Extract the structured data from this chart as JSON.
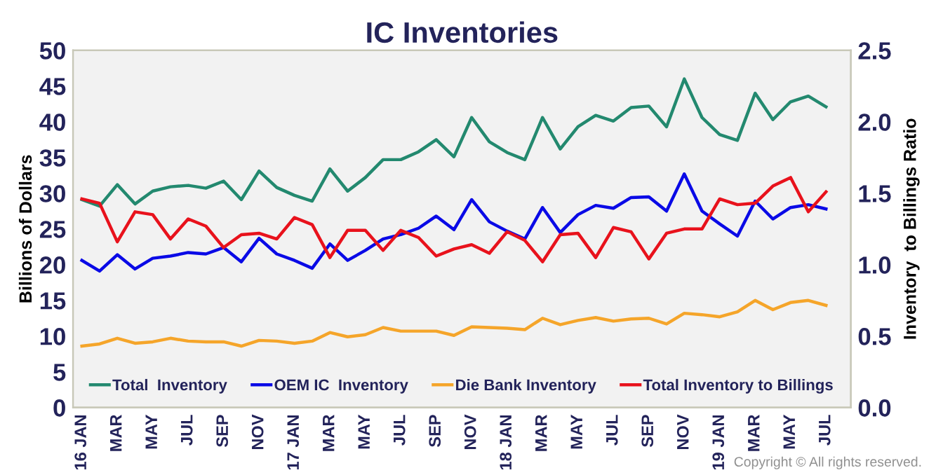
{
  "chart_data": {
    "type": "line",
    "title": "IC Inventories",
    "ylabel": "Billions of Dollars",
    "y2label": "Inventory  to Billings Ratio",
    "categories": [
      "16 JAN",
      null,
      "MAR",
      null,
      "MAY",
      null,
      "JUL",
      null,
      "SEP",
      null,
      "NOV",
      null,
      "17 JAN",
      null,
      "MAR",
      null,
      "MAY",
      null,
      "JUL",
      null,
      "SEP",
      null,
      "NOV",
      null,
      "18 JAN",
      null,
      "MAR",
      null,
      "MAY",
      null,
      "JUL",
      null,
      "SEP",
      null,
      "NOV",
      null,
      "19 JAN",
      null,
      "MAR",
      null,
      "MAY",
      null,
      "JUL"
    ],
    "series": [
      {
        "name": "Total  Inventory",
        "color": "#23896f",
        "values": [
          29.1,
          28.2,
          31.2,
          28.5,
          30.3,
          30.9,
          31.1,
          30.7,
          31.7,
          29.1,
          33.1,
          30.8,
          29.7,
          28.9,
          33.4,
          30.3,
          32.2,
          34.7,
          34.7,
          35.8,
          37.5,
          35.1,
          40.6,
          37.2,
          35.7,
          34.7,
          40.6,
          36.2,
          39.3,
          40.9,
          40.1,
          42.0,
          42.2,
          39.3,
          46.0,
          40.6,
          38.2,
          37.4,
          44.0,
          40.3,
          42.8,
          43.6,
          42.1
        ]
      },
      {
        "name": "OEM IC  Inventory",
        "color": "#0a0ae6",
        "values": [
          20.6,
          19.1,
          21.4,
          19.4,
          20.9,
          21.2,
          21.7,
          21.5,
          22.4,
          20.4,
          23.7,
          21.5,
          20.6,
          19.5,
          22.9,
          20.6,
          22.0,
          23.6,
          24.2,
          25.1,
          26.8,
          24.9,
          29.1,
          26.0,
          24.7,
          23.6,
          28.0,
          24.5,
          27.0,
          28.3,
          27.9,
          29.4,
          29.5,
          27.5,
          32.7,
          27.5,
          25.7,
          24.0,
          28.9,
          26.4,
          28.0,
          28.4,
          27.8
        ]
      },
      {
        "name": "Die Bank Inventory",
        "color": "#f5a52a",
        "values": [
          8.6,
          8.9,
          9.7,
          9.0,
          9.2,
          9.7,
          9.3,
          9.2,
          9.2,
          8.6,
          9.4,
          9.3,
          9.0,
          9.3,
          10.5,
          9.9,
          10.2,
          11.2,
          10.7,
          10.7,
          10.7,
          10.1,
          11.3,
          11.2,
          11.1,
          10.9,
          12.5,
          11.6,
          12.2,
          12.6,
          12.1,
          12.4,
          12.5,
          11.7,
          13.2,
          13.0,
          12.7,
          13.4,
          15.0,
          13.7,
          14.7,
          15.0,
          14.3
        ]
      },
      {
        "name": "Total Inventory to Billings",
        "color": "#e8121c",
        "axis": "y2",
        "values": [
          1.46,
          1.43,
          1.16,
          1.37,
          1.35,
          1.18,
          1.32,
          1.27,
          1.12,
          1.21,
          1.22,
          1.18,
          1.33,
          1.28,
          1.05,
          1.24,
          1.24,
          1.1,
          1.24,
          1.19,
          1.06,
          1.11,
          1.14,
          1.08,
          1.23,
          1.17,
          1.02,
          1.21,
          1.22,
          1.05,
          1.26,
          1.23,
          1.04,
          1.22,
          1.25,
          1.25,
          1.46,
          1.42,
          1.43,
          1.55,
          1.61,
          1.37,
          1.51
        ]
      }
    ],
    "ylim": [
      0,
      50
    ],
    "yticks": [
      0,
      5,
      10,
      15,
      20,
      25,
      30,
      35,
      40,
      45,
      50
    ],
    "y2lim": [
      0,
      2.5
    ],
    "y2ticks": [
      {
        "value": 0,
        "label": "0.0"
      },
      {
        "value": 0.5,
        "label": "0.5"
      },
      {
        "value": 1,
        "label": "1.0"
      },
      {
        "value": 1.5,
        "label": "1.5"
      },
      {
        "value": 2,
        "label": "2.0"
      },
      {
        "value": 2.5,
        "label": "2.5"
      }
    ],
    "grid": false,
    "legend": "bottom",
    "marker": "none",
    "line_style": "solid",
    "annotations": [
      "Copyright © All rights reserved."
    ]
  }
}
